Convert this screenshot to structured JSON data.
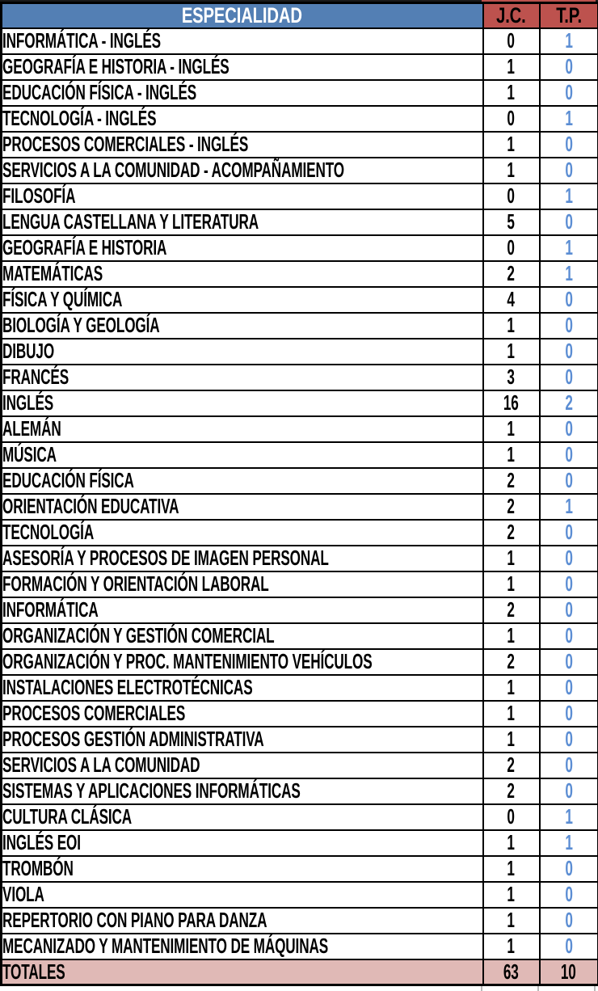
{
  "table": {
    "columns": [
      {
        "key": "especialidad",
        "label": "ESPECIALIDAD"
      },
      {
        "key": "jc",
        "label": "J.C."
      },
      {
        "key": "tp",
        "label": "T.P."
      }
    ],
    "rows": [
      {
        "especialidad": "INFORMÁTICA - INGLÉS",
        "jc": 0,
        "tp": 1
      },
      {
        "especialidad": "GEOGRAFÍA E HISTORIA - INGLÉS",
        "jc": 1,
        "tp": 0
      },
      {
        "especialidad": "EDUCACIÓN FÍSICA - INGLÉS",
        "jc": 1,
        "tp": 0
      },
      {
        "especialidad": "TECNOLOGÍA - INGLÉS",
        "jc": 0,
        "tp": 1
      },
      {
        "especialidad": "PROCESOS COMERCIALES - INGLÉS",
        "jc": 1,
        "tp": 0
      },
      {
        "especialidad": "SERVICIOS A LA COMUNIDAD - ACOMPAÑAMIENTO",
        "jc": 1,
        "tp": 0
      },
      {
        "especialidad": "FILOSOFÍA",
        "jc": 0,
        "tp": 1
      },
      {
        "especialidad": "LENGUA CASTELLANA Y LITERATURA",
        "jc": 5,
        "tp": 0
      },
      {
        "especialidad": "GEOGRAFÍA E HISTORIA",
        "jc": 0,
        "tp": 1
      },
      {
        "especialidad": "MATEMÁTICAS",
        "jc": 2,
        "tp": 1
      },
      {
        "especialidad": "FÍSICA Y QUÍMICA",
        "jc": 4,
        "tp": 0
      },
      {
        "especialidad": "BIOLOGÍA Y GEOLOGÍA",
        "jc": 1,
        "tp": 0
      },
      {
        "especialidad": "DIBUJO",
        "jc": 1,
        "tp": 0
      },
      {
        "especialidad": "FRANCÉS",
        "jc": 3,
        "tp": 0
      },
      {
        "especialidad": "INGLÉS",
        "jc": 16,
        "tp": 2
      },
      {
        "especialidad": "ALEMÁN",
        "jc": 1,
        "tp": 0
      },
      {
        "especialidad": "MÚSICA",
        "jc": 1,
        "tp": 0
      },
      {
        "especialidad": "EDUCACIÓN FÍSICA",
        "jc": 2,
        "tp": 0
      },
      {
        "especialidad": "ORIENTACIÓN EDUCATIVA",
        "jc": 2,
        "tp": 1
      },
      {
        "especialidad": "TECNOLOGÍA",
        "jc": 2,
        "tp": 0
      },
      {
        "especialidad": "ASESORÍA Y PROCESOS DE IMAGEN PERSONAL",
        "jc": 1,
        "tp": 0
      },
      {
        "especialidad": "FORMACIÓN Y ORIENTACIÓN LABORAL",
        "jc": 1,
        "tp": 0
      },
      {
        "especialidad": "INFORMÁTICA",
        "jc": 2,
        "tp": 0
      },
      {
        "especialidad": "ORGANIZACIÓN Y GESTIÓN COMERCIAL",
        "jc": 1,
        "tp": 0
      },
      {
        "especialidad": "ORGANIZACIÓN Y PROC. MANTENIMIENTO VEHÍCULOS",
        "jc": 2,
        "tp": 0
      },
      {
        "especialidad": "INSTALACIONES ELECTROTÉCNICAS",
        "jc": 1,
        "tp": 0
      },
      {
        "especialidad": "PROCESOS COMERCIALES",
        "jc": 1,
        "tp": 0
      },
      {
        "especialidad": "PROCESOS GESTIÓN ADMINISTRATIVA",
        "jc": 1,
        "tp": 0
      },
      {
        "especialidad": "SERVICIOS A LA COMUNIDAD",
        "jc": 2,
        "tp": 0
      },
      {
        "especialidad": "SISTEMAS Y APLICACIONES INFORMÁTICAS",
        "jc": 2,
        "tp": 0
      },
      {
        "especialidad": "CULTURA CLÁSICA",
        "jc": 0,
        "tp": 1
      },
      {
        "especialidad": "INGLÉS EOI",
        "jc": 1,
        "tp": 1
      },
      {
        "especialidad": "TROMBÓN",
        "jc": 1,
        "tp": 0
      },
      {
        "especialidad": "VIOLA",
        "jc": 1,
        "tp": 0
      },
      {
        "especialidad": "REPERTORIO CON PIANO PARA DANZA",
        "jc": 1,
        "tp": 0
      },
      {
        "especialidad": "MECANIZADO Y MANTENIMIENTO DE MÁQUINAS",
        "jc": 1,
        "tp": 0
      }
    ],
    "totals": {
      "label": "TOTALES",
      "jc": 63,
      "tp": 10
    }
  },
  "colors": {
    "header_especialidad_bg": "#537FB4",
    "header_especialidad_text": "#FFFFFF",
    "header_counts_bg": "#BD524E",
    "header_counts_text": "#000000",
    "totals_row_bg": "#E0B9B6",
    "tp_value_text": "#5B8DD3",
    "jc_value_text": "#000000",
    "border": "#000000"
  }
}
